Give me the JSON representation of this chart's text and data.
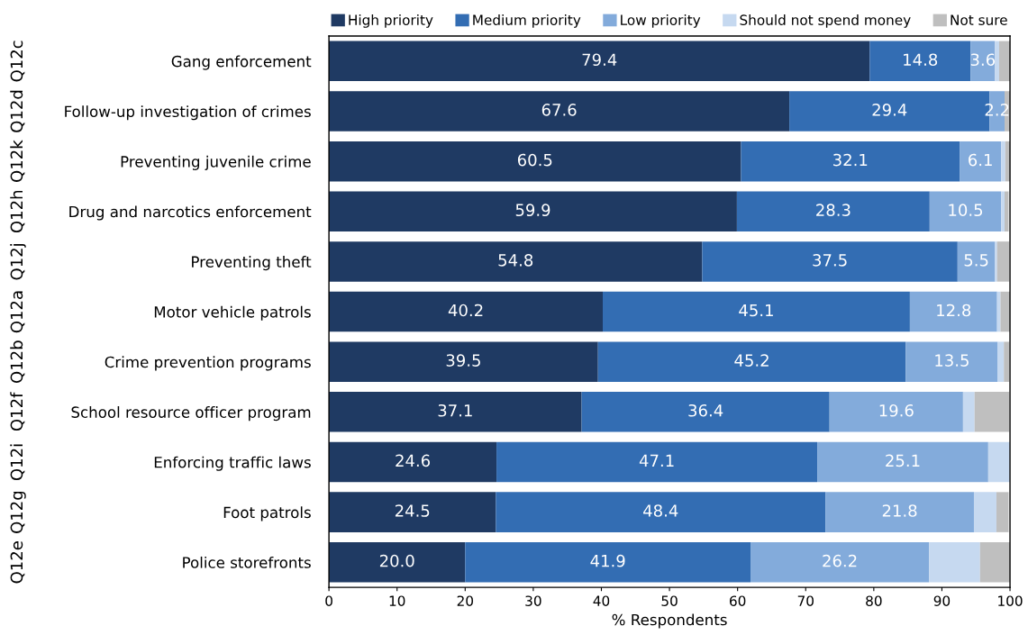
{
  "chart_data": {
    "type": "bar",
    "orientation": "horizontal",
    "stacked": true,
    "xlabel": "% Respondents",
    "categories": [
      "Gang enforcement",
      "Follow-up investigation of crimes",
      "Preventing juvenile crime",
      "Drug and narcotics enforcement",
      "Preventing theft",
      "Motor vehicle patrols",
      "Crime prevention programs",
      "School resource officer program",
      "Enforcing traffic laws",
      "Foot patrols",
      "Police storefronts"
    ],
    "series": [
      {
        "name": "High priority",
        "color": "#1f3a63",
        "values": [
          79.4,
          67.6,
          60.5,
          59.9,
          54.8,
          40.2,
          39.5,
          37.1,
          24.6,
          24.5,
          20.0
        ],
        "value_labels": [
          "79.4",
          "67.6",
          "60.5",
          "59.9",
          "54.8",
          "40.2",
          "39.5",
          "37.1",
          "24.6",
          "24.5",
          "20.0"
        ]
      },
      {
        "name": "Medium priority",
        "color": "#336db3",
        "values": [
          14.8,
          29.4,
          32.1,
          28.3,
          37.5,
          45.1,
          45.2,
          36.4,
          47.1,
          48.4,
          41.9
        ],
        "value_labels": [
          "14.8",
          "29.4",
          "32.1",
          "28.3",
          "37.5",
          "45.1",
          "45.2",
          "36.4",
          "47.1",
          "48.4",
          "41.9"
        ]
      },
      {
        "name": "Low priority",
        "color": "#83abdb",
        "values": [
          3.6,
          2.2,
          6.1,
          10.5,
          5.5,
          12.8,
          13.5,
          19.6,
          25.1,
          21.8,
          26.2
        ],
        "value_labels": [
          "3.6",
          "2.2",
          "6.1",
          "10.5",
          "5.5",
          "12.8",
          "13.5",
          "19.6",
          "25.1",
          "21.8",
          "26.2"
        ]
      },
      {
        "name": "Should not spend money",
        "color": "#c6d9f0",
        "values": [
          0.6,
          0.0,
          0.6,
          0.5,
          0.3,
          0.5,
          0.9,
          1.7,
          3.2,
          3.3,
          7.5
        ]
      },
      {
        "name": "Not sure",
        "color": "#bfbfbf",
        "values": [
          1.6,
          0.8,
          0.7,
          0.6,
          1.8,
          1.4,
          0.8,
          5.1,
          0.0,
          1.8,
          4.4
        ]
      }
    ],
    "xlim": [
      0,
      100
    ],
    "xticks": [
      0,
      10,
      20,
      30,
      40,
      50,
      60,
      70,
      80,
      90,
      100
    ],
    "legend": "top",
    "annotations": [
      "Q12c",
      "Q12d",
      "Q12k",
      "Q12h",
      "Q12j",
      "Q12a",
      "Q12b",
      "Q12f",
      "Q12i",
      "Q12g",
      "Q12e"
    ]
  }
}
